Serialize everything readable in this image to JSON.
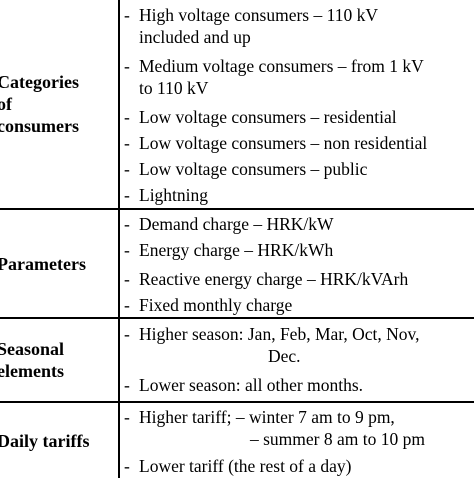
{
  "table": {
    "rows": [
      {
        "category": "Categories\nof\nconsumers",
        "items": [
          {
            "text": "High voltage consumers – 110 kV",
            "cont": "included and up"
          },
          {
            "text": "Medium voltage consumers – from 1 kV",
            "cont": "to 110 kV"
          },
          {
            "text": "Low voltage consumers – residential"
          },
          {
            "text": "Low voltage consumers – non residential"
          },
          {
            "text": "Low voltage consumers – public"
          },
          {
            "text": "Lightning"
          }
        ]
      },
      {
        "category": "Parameters",
        "items": [
          {
            "text": "Demand charge – HRK/kW"
          },
          {
            "text": "Energy charge – HRK/kWh"
          },
          {
            "text": "Reactive energy charge – HRK/kVArh"
          },
          {
            "text": "Fixed monthly charge"
          }
        ]
      },
      {
        "category": "Seasonal\nelements",
        "items": [
          {
            "text": "Higher season: Jan, Feb, Mar, Oct, Nov,",
            "cont": "Dec."
          },
          {
            "text": "Lower season: all other months."
          }
        ]
      },
      {
        "category": "Daily tariffs",
        "items": [
          {
            "text": "Higher tariff;  – winter 7 am to 9 pm,",
            "cont": "– summer 8 am to 10 pm"
          },
          {
            "text": "Lower tariff (the rest of a day)"
          }
        ]
      }
    ]
  }
}
